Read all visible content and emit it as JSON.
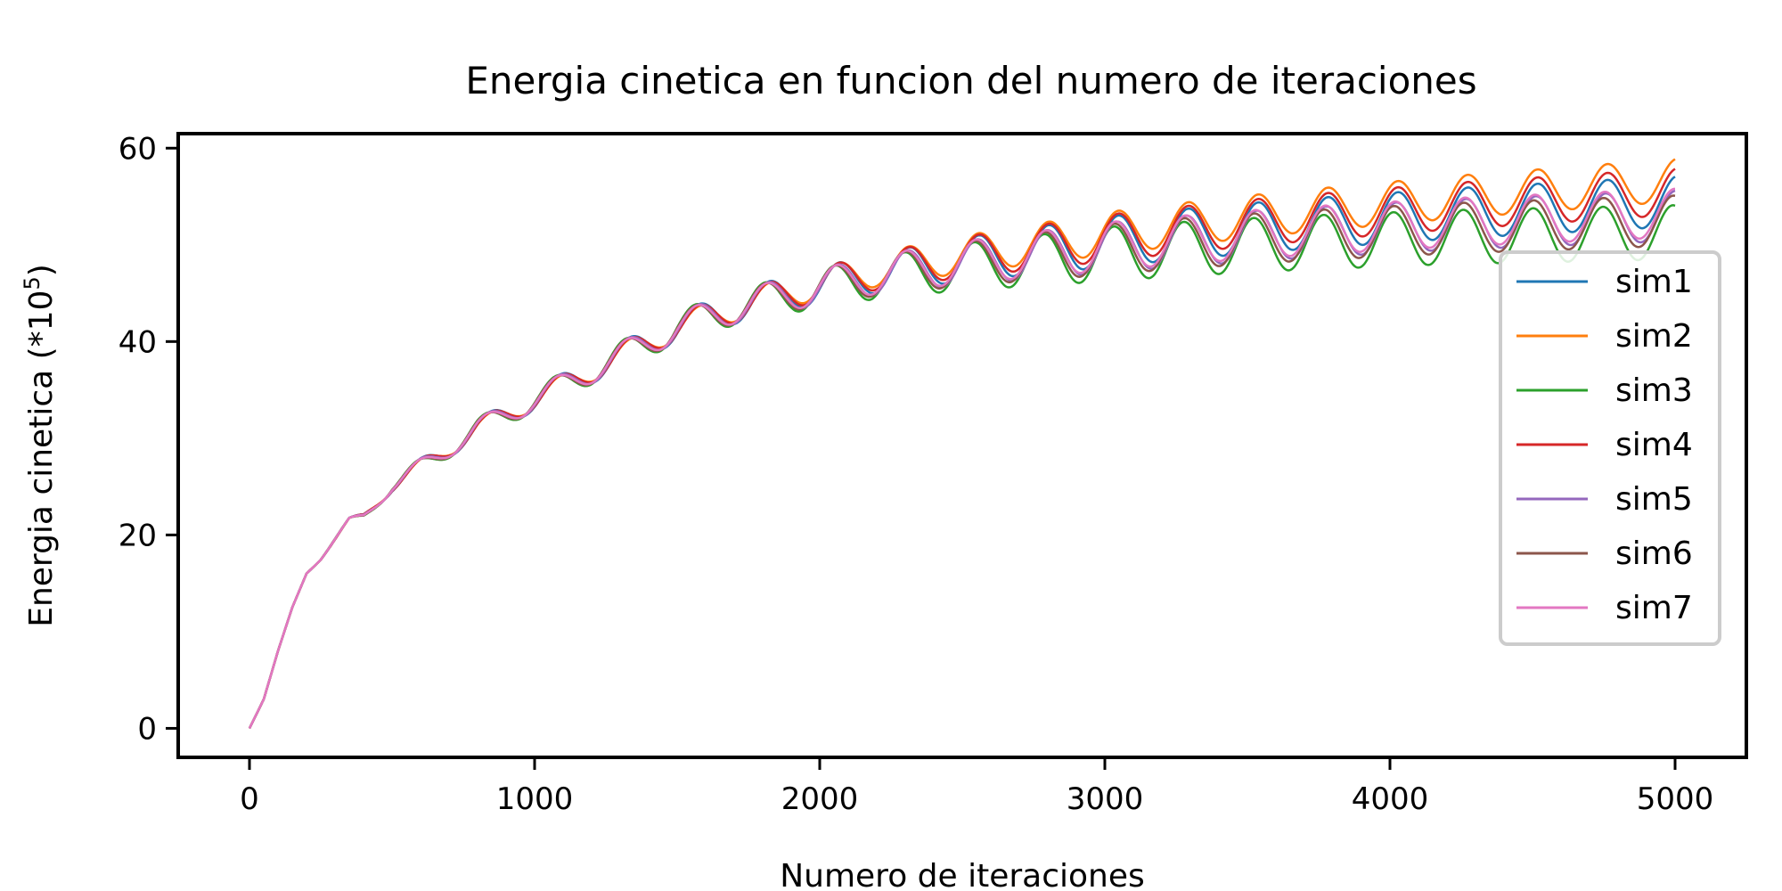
{
  "chart_data": {
    "type": "line",
    "title": "Energia cinetica en funcion del numero de iteraciones",
    "xlabel": "Numero de iteraciones",
    "ylabel": "Energia cinetica (*10",
    "ylabel_sup": "5",
    "ylabel_close": ")",
    "xlim": [
      -250,
      5250
    ],
    "ylim": [
      -3,
      61.5
    ],
    "xticks": [
      0,
      1000,
      2000,
      3000,
      4000,
      5000
    ],
    "yticks": [
      0,
      20,
      40,
      60
    ],
    "grid": false,
    "legend_position": "right",
    "base_curve": {
      "x": [
        0,
        50,
        100,
        150,
        200,
        250,
        300,
        350,
        400,
        450,
        500,
        600,
        700,
        800,
        900,
        1000,
        1100,
        1200,
        1300,
        1400,
        1500,
        1600,
        1700,
        1800,
        1900,
        2000,
        2100,
        2200,
        2300,
        2400,
        2500,
        2600,
        2700,
        2800,
        2900,
        3000,
        3200,
        3400,
        3600,
        3800,
        4000,
        4200,
        4400,
        4600,
        4800,
        5000
      ],
      "y": [
        0,
        3,
        8,
        12.5,
        16,
        17.5,
        19.5,
        21.5,
        22,
        23.5,
        25,
        27,
        29,
        31,
        32.5,
        34,
        35.5,
        37,
        38.5,
        40,
        41.5,
        42.5,
        43.5,
        44.2,
        45,
        45.6,
        46.2,
        46.8,
        47.2,
        47.6,
        48,
        48.3,
        48.6,
        48.9,
        49.2,
        49.5,
        50,
        50.4,
        50.8,
        51.1,
        51.4,
        51.7,
        51.9,
        52.1,
        52.3,
        52.5
      ]
    },
    "oscillation_period": 245,
    "series": [
      {
        "name": "sim1",
        "color": "#1f77b4",
        "offset_final": 2.0,
        "amplitude_final": 2.6,
        "phase": 0
      },
      {
        "name": "sim2",
        "color": "#ff7f0e",
        "offset_final": 4.2,
        "amplitude_final": 2.2,
        "phase": 0
      },
      {
        "name": "sim3",
        "color": "#2ca02c",
        "offset_final": -1.2,
        "amplitude_final": 2.8,
        "phase": 0.4
      },
      {
        "name": "sim4",
        "color": "#d62728",
        "offset_final": 3.0,
        "amplitude_final": 2.4,
        "phase": 0
      },
      {
        "name": "sim5",
        "color": "#9467bd",
        "offset_final": 0.5,
        "amplitude_final": 2.6,
        "phase": 0.15
      },
      {
        "name": "sim6",
        "color": "#8c564b",
        "offset_final": 0.0,
        "amplitude_final": 2.6,
        "phase": 0.35
      },
      {
        "name": "sim7",
        "color": "#e377c2",
        "offset_final": 0.8,
        "amplitude_final": 2.5,
        "phase": 0.25
      }
    ]
  }
}
